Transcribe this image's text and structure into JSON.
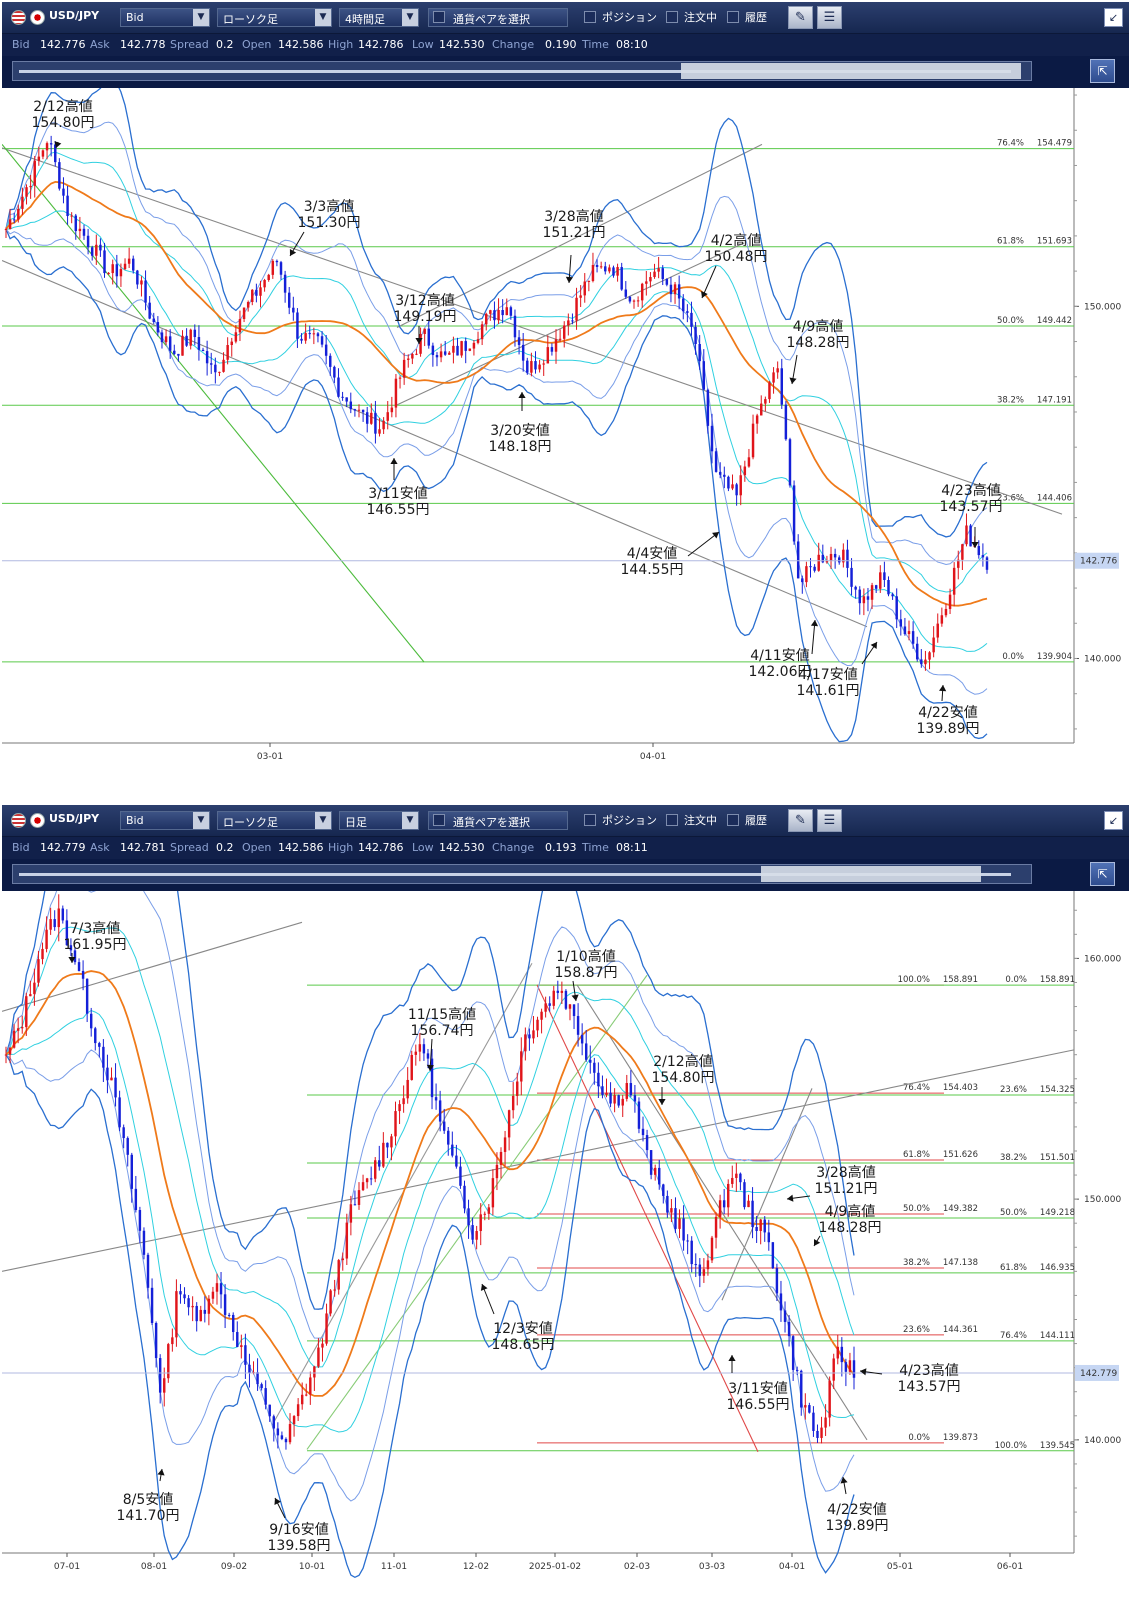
{
  "panels": [
    {
      "toolbar": {
        "pair": "USD/JPY",
        "price_type": "Bid",
        "chart_type": "ローソク足",
        "timeframe": "4時間足",
        "select_pair": "通貨ペアを選択",
        "position": "ポジション",
        "orders": "注文中",
        "history": "履歴"
      },
      "quote": {
        "bid_label": "Bid",
        "bid": "142.776",
        "ask_label": "Ask",
        "ask": "142.778",
        "spread_label": "Spread",
        "spread": "0.2",
        "open_label": "Open",
        "open": "142.586",
        "high_label": "High",
        "high": "142.786",
        "low_label": "Low",
        "low": "142.530",
        "change_label": "Change",
        "change": "0.190",
        "time_label": "Time",
        "time": "08:10"
      },
      "chart_data": {
        "type": "candlestick",
        "timeframe": "4時間足",
        "x_ticks": [
          "03-01",
          "04-01"
        ],
        "y_ticks": [
          140.0,
          150.0
        ],
        "ylim": [
          137.6,
          156.2
        ],
        "current_price": "142.776",
        "fibonacci": [
          {
            "ratio": "76.4%",
            "price": "154.479",
            "value": 154.479
          },
          {
            "ratio": "61.8%",
            "price": "151.693",
            "value": 151.693
          },
          {
            "ratio": "50.0%",
            "price": "149.442",
            "value": 149.442
          },
          {
            "ratio": "38.2%",
            "price": "147.191",
            "value": 147.191
          },
          {
            "ratio": "23.6%",
            "price": "144.406",
            "value": 144.406
          },
          {
            "ratio": "0.0%",
            "price": "139.904",
            "value": 139.904
          }
        ],
        "annotations": [
          {
            "line1": "2/12高値",
            "line2": "154.80円"
          },
          {
            "line1": "3/3高値",
            "line2": "151.30円"
          },
          {
            "line1": "3/12高値",
            "line2": "149.19円"
          },
          {
            "line1": "3/11安値",
            "line2": "146.55円"
          },
          {
            "line1": "3/20安値",
            "line2": "148.18円"
          },
          {
            "line1": "3/28高値",
            "line2": "151.21円"
          },
          {
            "line1": "4/2高値",
            "line2": "150.48円"
          },
          {
            "line1": "4/4安値",
            "line2": "144.55円"
          },
          {
            "line1": "4/9高値",
            "line2": "148.28円"
          },
          {
            "line1": "4/11安値",
            "line2": "142.06円"
          },
          {
            "line1": "4/17安値",
            "line2": "141.61円"
          },
          {
            "line1": "4/22安値",
            "line2": "139.89円"
          },
          {
            "line1": "4/23高値",
            "line2": "143.57円"
          }
        ],
        "path": [
          152.2,
          153.4,
          154.8,
          152.6,
          151.8,
          150.9,
          151.3,
          149.6,
          148.7,
          149.2,
          148.0,
          149.5,
          150.4,
          151.3,
          149.2,
          148.9,
          147.6,
          146.9,
          146.55,
          148.2,
          149.19,
          148.5,
          148.9,
          149.6,
          150.1,
          148.18,
          148.8,
          149.7,
          150.9,
          151.21,
          150.2,
          151.0,
          150.48,
          149.1,
          145.2,
          144.55,
          146.9,
          148.28,
          142.06,
          142.9,
          143.0,
          141.61,
          142.3,
          140.8,
          139.89,
          141.6,
          143.57,
          142.776
        ]
      }
    },
    {
      "toolbar": {
        "pair": "USD/JPY",
        "price_type": "Bid",
        "chart_type": "ローソク足",
        "timeframe": "日足",
        "select_pair": "通貨ペアを選択",
        "position": "ポジション",
        "orders": "注文中",
        "history": "履歴"
      },
      "quote": {
        "bid_label": "Bid",
        "bid": "142.779",
        "ask_label": "Ask",
        "ask": "142.781",
        "spread_label": "Spread",
        "spread": "0.2",
        "open_label": "Open",
        "open": "142.586",
        "high_label": "High",
        "high": "142.786",
        "low_label": "Low",
        "low": "142.530",
        "change_label": "Change",
        "change": "0.193",
        "time_label": "Time",
        "time": "08:11"
      },
      "chart_data": {
        "type": "candlestick",
        "timeframe": "日足",
        "x_ticks": [
          "07-01",
          "08-01",
          "09-02",
          "10-01",
          "11-01",
          "12-02",
          "2025-01-02",
          "02-03",
          "03-03",
          "04-01",
          "05-01",
          "06-01"
        ],
        "y_ticks": [
          140.0,
          150.0,
          160.0
        ],
        "ylim": [
          135.3,
          162.8
        ],
        "current_price": "142.779",
        "fib_a": [
          {
            "ratio": "100.0%",
            "price": "158.891",
            "value": 158.891
          },
          {
            "ratio": "76.4%",
            "price": "154.403",
            "value": 154.403
          },
          {
            "ratio": "61.8%",
            "price": "151.626",
            "value": 151.626
          },
          {
            "ratio": "50.0%",
            "price": "149.382",
            "value": 149.382
          },
          {
            "ratio": "38.2%",
            "price": "147.138",
            "value": 147.138
          },
          {
            "ratio": "23.6%",
            "price": "144.361",
            "value": 144.361
          },
          {
            "ratio": "0.0%",
            "price": "139.873",
            "value": 139.873
          }
        ],
        "fib_b": [
          {
            "ratio": "0.0%",
            "price": "158.891",
            "value": 158.891
          },
          {
            "ratio": "23.6%",
            "price": "154.325",
            "value": 154.325
          },
          {
            "ratio": "38.2%",
            "price": "151.501",
            "value": 151.501
          },
          {
            "ratio": "50.0%",
            "price": "149.218",
            "value": 149.218
          },
          {
            "ratio": "61.8%",
            "price": "146.935",
            "value": 146.935
          },
          {
            "ratio": "76.4%",
            "price": "144.111",
            "value": 144.111
          },
          {
            "ratio": "100.0%",
            "price": "139.545",
            "value": 139.545
          }
        ],
        "annotations": [
          {
            "line1": "7/3高値",
            "line2": "161.95円"
          },
          {
            "line1": "8/5安値",
            "line2": "141.70円"
          },
          {
            "line1": "9/16安値",
            "line2": "139.58円"
          },
          {
            "line1": "11/15高値",
            "line2": "156.74円"
          },
          {
            "line1": "12/3安値",
            "line2": "148.65円"
          },
          {
            "line1": "1/10高値",
            "line2": "158.87円"
          },
          {
            "line1": "2/12高値",
            "line2": "154.80円"
          },
          {
            "line1": "3/11安値",
            "line2": "146.55円"
          },
          {
            "line1": "3/28高値",
            "line2": "151.21円"
          },
          {
            "line1": "4/9高値",
            "line2": "148.28円"
          },
          {
            "line1": "4/23高値",
            "line2": "143.57円"
          },
          {
            "line1": "4/22安値",
            "line2": "139.89円"
          }
        ],
        "path": [
          155.8,
          157.6,
          160.4,
          161.95,
          160.0,
          157.2,
          155.0,
          151.6,
          147.5,
          141.7,
          146.6,
          144.8,
          146.6,
          145.0,
          142.8,
          141.6,
          139.58,
          141.5,
          143.4,
          146.6,
          149.6,
          150.9,
          152.4,
          154.6,
          156.74,
          153.4,
          151.0,
          148.65,
          150.2,
          153.4,
          156.8,
          157.9,
          158.87,
          157.2,
          155.3,
          154.0,
          154.8,
          151.8,
          150.0,
          148.8,
          146.55,
          148.9,
          151.21,
          149.4,
          148.28,
          144.9,
          141.6,
          139.89,
          143.57,
          142.779
        ]
      }
    }
  ]
}
